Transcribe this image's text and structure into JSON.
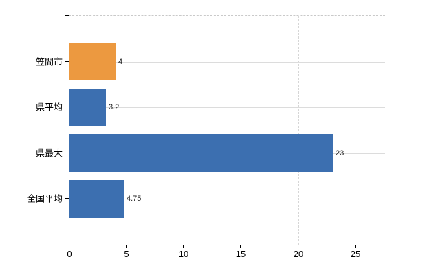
{
  "chart_data": {
    "type": "bar",
    "orientation": "horizontal",
    "title": "",
    "xlabel": "",
    "ylabel": "",
    "categories": [
      "笠間市",
      "県平均",
      "県最大",
      "全国平均"
    ],
    "values": [
      4,
      3.2,
      23,
      4.75
    ],
    "value_labels": [
      "4",
      "3.2",
      "23",
      "4.75"
    ],
    "bar_colors": [
      "#ec9940",
      "#3c6fb0",
      "#3c6fb0",
      "#3c6fb0"
    ],
    "x_ticks": [
      0,
      5,
      10,
      15,
      20,
      25
    ],
    "x_tick_labels": [
      "0",
      "5",
      "10",
      "15",
      "20",
      "25"
    ],
    "xlim": [
      0,
      27.6
    ],
    "grid": true,
    "legend": false
  },
  "colors": {
    "highlight_bar": "#ec9940",
    "default_bar": "#3c6fb0",
    "axis_line": "#000000",
    "vertical_gridline": "#d6d6d6",
    "horizontal_gridline": "#dcdcdc",
    "plot_top_border": "#c9c9c9",
    "background": "#ffffff",
    "label_text": "#000000",
    "value_text": "#1a1a1a"
  }
}
